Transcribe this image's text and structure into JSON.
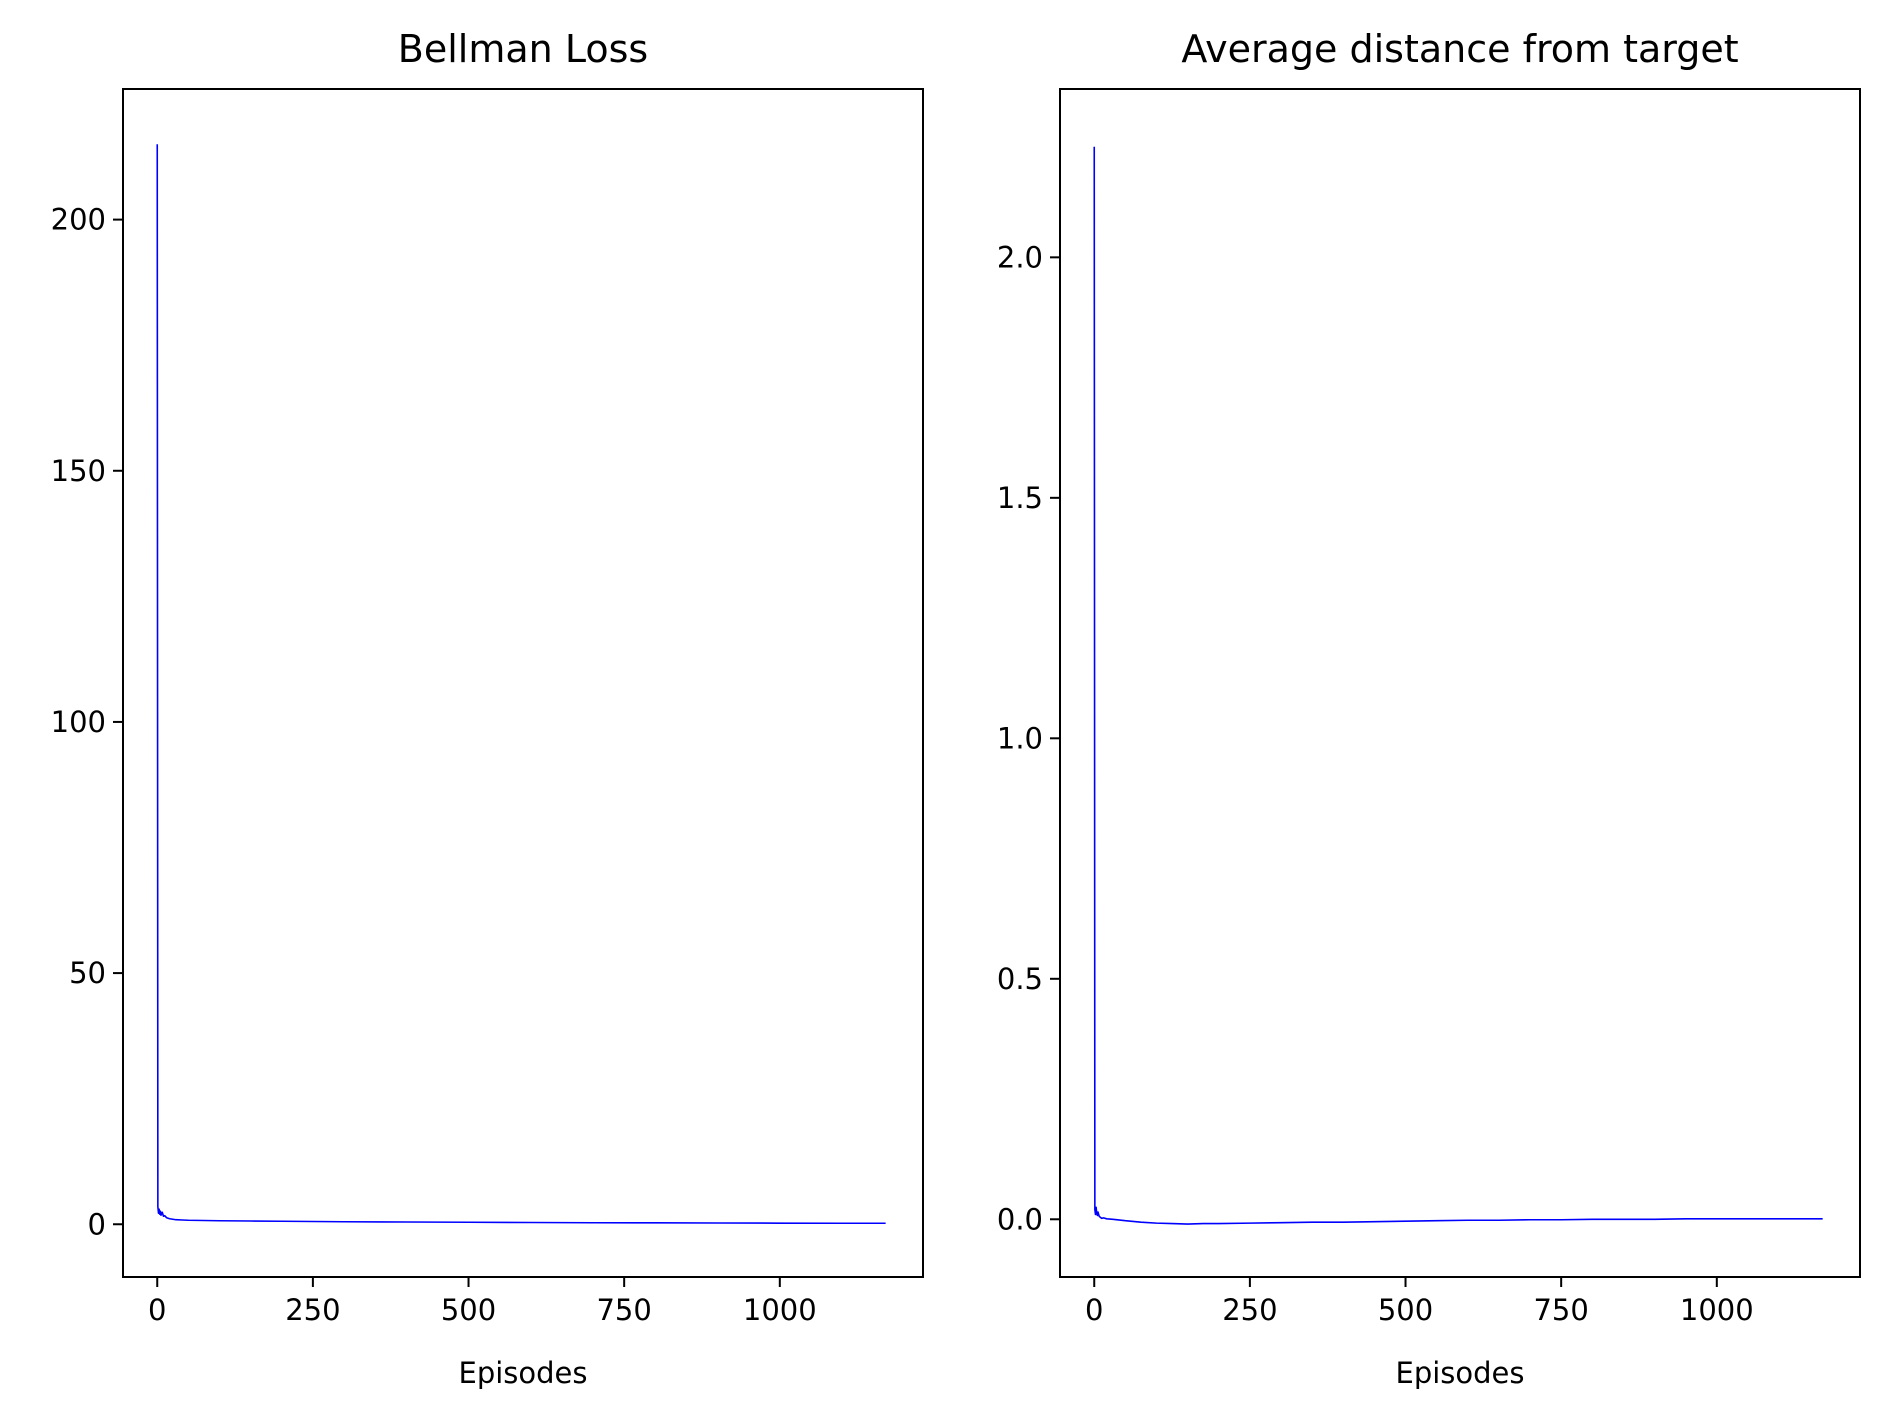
{
  "chart_data": [
    {
      "type": "line",
      "title": "Bellman Loss",
      "xlabel": "Episodes",
      "ylabel": "",
      "xlim": [
        -55,
        1230
      ],
      "ylim": [
        -10.5,
        226
      ],
      "xticks": [
        0,
        250,
        500,
        750,
        1000
      ],
      "xtick_labels": [
        "0",
        "250",
        "500",
        "750",
        "1000"
      ],
      "yticks": [
        0,
        50,
        100,
        150,
        200
      ],
      "ytick_labels": [
        "0",
        "50",
        "100",
        "150",
        "200"
      ],
      "grid": false,
      "color": "#0000ff",
      "series": [
        {
          "x": [
            0,
            1,
            2,
            3,
            4,
            5,
            6,
            8,
            10,
            12,
            15,
            20,
            25,
            30,
            40,
            50,
            75,
            100,
            150,
            200,
            250,
            300,
            400,
            500,
            600,
            700,
            800,
            900,
            1000,
            1100,
            1170
          ],
          "y": [
            215,
            3.5,
            2.2,
            3.0,
            2.0,
            2.6,
            1.8,
            2.4,
            1.6,
            1.7,
            1.3,
            1.1,
            1.0,
            0.9,
            0.85,
            0.8,
            0.75,
            0.7,
            0.65,
            0.6,
            0.55,
            0.5,
            0.45,
            0.4,
            0.35,
            0.3,
            0.28,
            0.25,
            0.22,
            0.2,
            0.2
          ]
        }
      ]
    },
    {
      "type": "line",
      "title": "Average distance from target",
      "xlabel": "Episodes",
      "ylabel": "",
      "xlim": [
        -55,
        1230
      ],
      "ylim": [
        -0.12,
        2.35
      ],
      "xticks": [
        0,
        250,
        500,
        750,
        1000
      ],
      "xtick_labels": [
        "0",
        "250",
        "500",
        "750",
        "1000"
      ],
      "yticks": [
        0.0,
        0.5,
        1.0,
        1.5,
        2.0
      ],
      "ytick_labels": [
        "0.0",
        "0.5",
        "1.0",
        "1.5",
        "2.0"
      ],
      "grid": false,
      "color": "#0000ff",
      "series": [
        {
          "x": [
            0,
            1,
            2,
            3,
            4,
            5,
            6,
            8,
            10,
            12,
            15,
            20,
            30,
            50,
            75,
            100,
            125,
            150,
            175,
            200,
            250,
            300,
            350,
            400,
            450,
            500,
            550,
            600,
            650,
            700,
            750,
            800,
            850,
            900,
            950,
            1000,
            1050,
            1100,
            1170
          ],
          "y": [
            2.23,
            0.02,
            0.01,
            0.025,
            0.012,
            0.008,
            0.015,
            0.006,
            0.004,
            0.002,
            0.003,
            0.001,
            0.0,
            -0.003,
            -0.006,
            -0.008,
            -0.009,
            -0.01,
            -0.009,
            -0.009,
            -0.008,
            -0.007,
            -0.006,
            -0.006,
            -0.005,
            -0.004,
            -0.003,
            -0.002,
            -0.002,
            -0.001,
            -0.001,
            0.0,
            0.0,
            0.0,
            0.001,
            0.001,
            0.001,
            0.001,
            0.001
          ]
        }
      ]
    }
  ]
}
